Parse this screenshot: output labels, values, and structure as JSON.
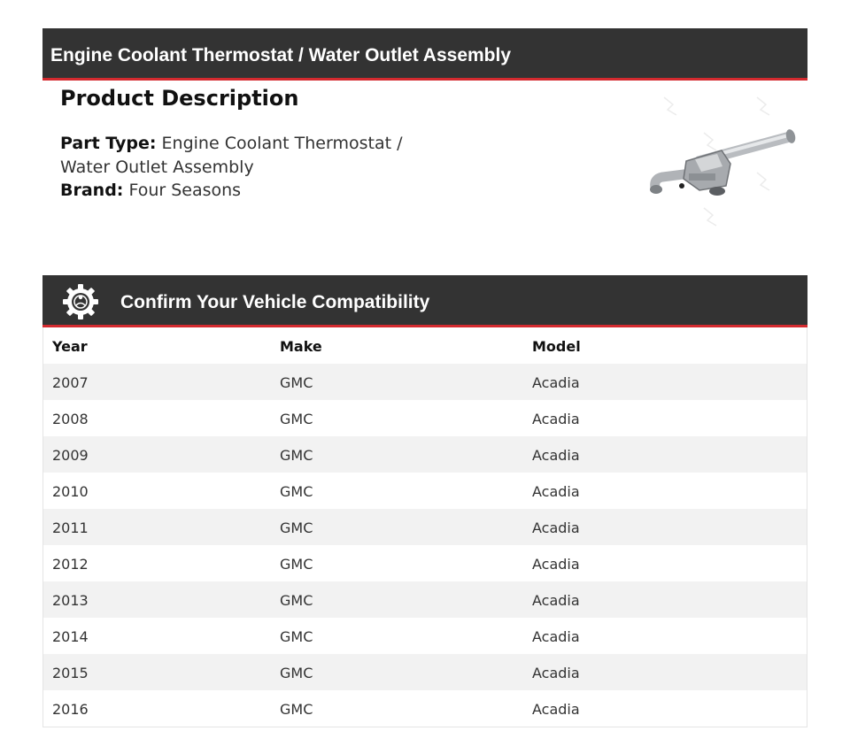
{
  "header": {
    "title": "Engine Coolant Thermostat / Water Outlet Assembly"
  },
  "product": {
    "heading": "Product Description",
    "part_type_label": "Part Type:",
    "part_type_line1": "Engine Coolant Thermostat /",
    "part_type_line2": "Water Outlet Assembly",
    "brand_label": "Brand:",
    "brand_value": "Four Seasons"
  },
  "compat": {
    "title": "Confirm Your Vehicle Compatibility",
    "icon": "gear-icon",
    "columns": [
      "Year",
      "Make",
      "Model"
    ],
    "rows": [
      [
        "2007",
        "GMC",
        "Acadia"
      ],
      [
        "2008",
        "GMC",
        "Acadia"
      ],
      [
        "2009",
        "GMC",
        "Acadia"
      ],
      [
        "2010",
        "GMC",
        "Acadia"
      ],
      [
        "2011",
        "GMC",
        "Acadia"
      ],
      [
        "2012",
        "GMC",
        "Acadia"
      ],
      [
        "2013",
        "GMC",
        "Acadia"
      ],
      [
        "2014",
        "GMC",
        "Acadia"
      ],
      [
        "2015",
        "GMC",
        "Acadia"
      ],
      [
        "2016",
        "GMC",
        "Acadia"
      ]
    ]
  },
  "colors": {
    "bar": "#333333",
    "accent": "#d42a2f",
    "row_alt": "#f2f2f2"
  }
}
